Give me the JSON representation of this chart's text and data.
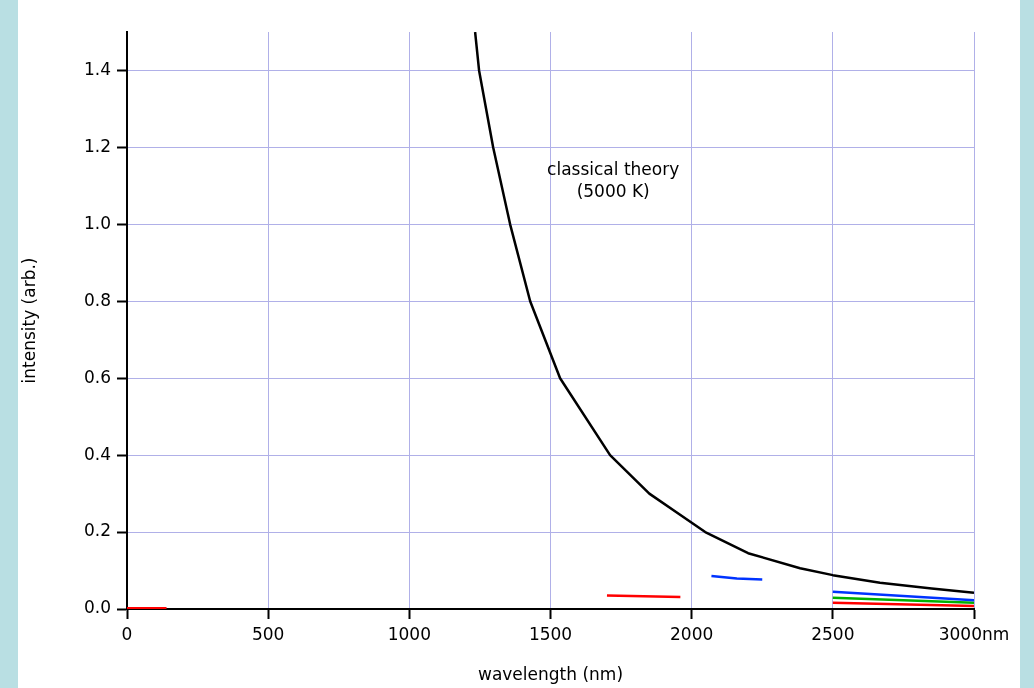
{
  "chart_data": {
    "type": "line",
    "xlabel": "wavelength (nm)",
    "ylabel": "intensity (arb.)",
    "xlim": [
      0,
      3000
    ],
    "xticks": [
      0,
      500,
      1000,
      1500,
      2000,
      2500,
      {
        "value": 3000,
        "label": "3000nm"
      }
    ],
    "ylim": [
      0,
      1.5
    ],
    "yticks": [
      {
        "value": 0,
        "label": "0.0"
      },
      {
        "value": 0.2,
        "label": "0.2"
      },
      {
        "value": 0.4,
        "label": "0.4"
      },
      {
        "value": 0.6,
        "label": "0.6"
      },
      {
        "value": 0.8,
        "label": "0.8"
      },
      {
        "value": 1.0,
        "label": "1.0"
      },
      {
        "value": 1.2,
        "label": "1.2"
      },
      {
        "value": 1.4,
        "label": "1.4"
      }
    ],
    "grid": true,
    "legend": false,
    "marker": "none",
    "line_style": "solid",
    "series": [
      {
        "color": "#000000",
        "x": [
          1233,
          1247,
          1297,
          1357,
          1428,
          1534,
          1711,
          1850,
          2048,
          2200,
          2384,
          2500,
          2667,
          2850,
          3000
        ],
        "values": [
          1.5,
          1.4,
          1.2,
          1.0,
          0.8,
          0.6,
          0.4,
          0.3,
          0.2,
          0.145,
          0.106,
          0.088,
          0.068,
          0.053,
          0.042
        ]
      },
      {
        "color": "#ff0000",
        "x": [
          0,
          140,
          1000,
          1700,
          1960,
          2200,
          2500,
          3000
        ],
        "values": [
          0.002,
          0.002,
          null,
          0.035,
          0.031,
          null,
          0.016,
          0.008
        ]
      },
      {
        "color": "#0033ff",
        "x": [
          2070,
          2160,
          2250,
          2400,
          2500,
          3000
        ],
        "values": [
          0.086,
          0.079,
          0.077,
          null,
          0.045,
          0.023
        ]
      },
      {
        "color": "#00b000",
        "x": [
          2500,
          3000
        ],
        "values": [
          0.029,
          0.016
        ]
      }
    ],
    "annotations": [
      "classical theory\n(5000 K)"
    ]
  }
}
